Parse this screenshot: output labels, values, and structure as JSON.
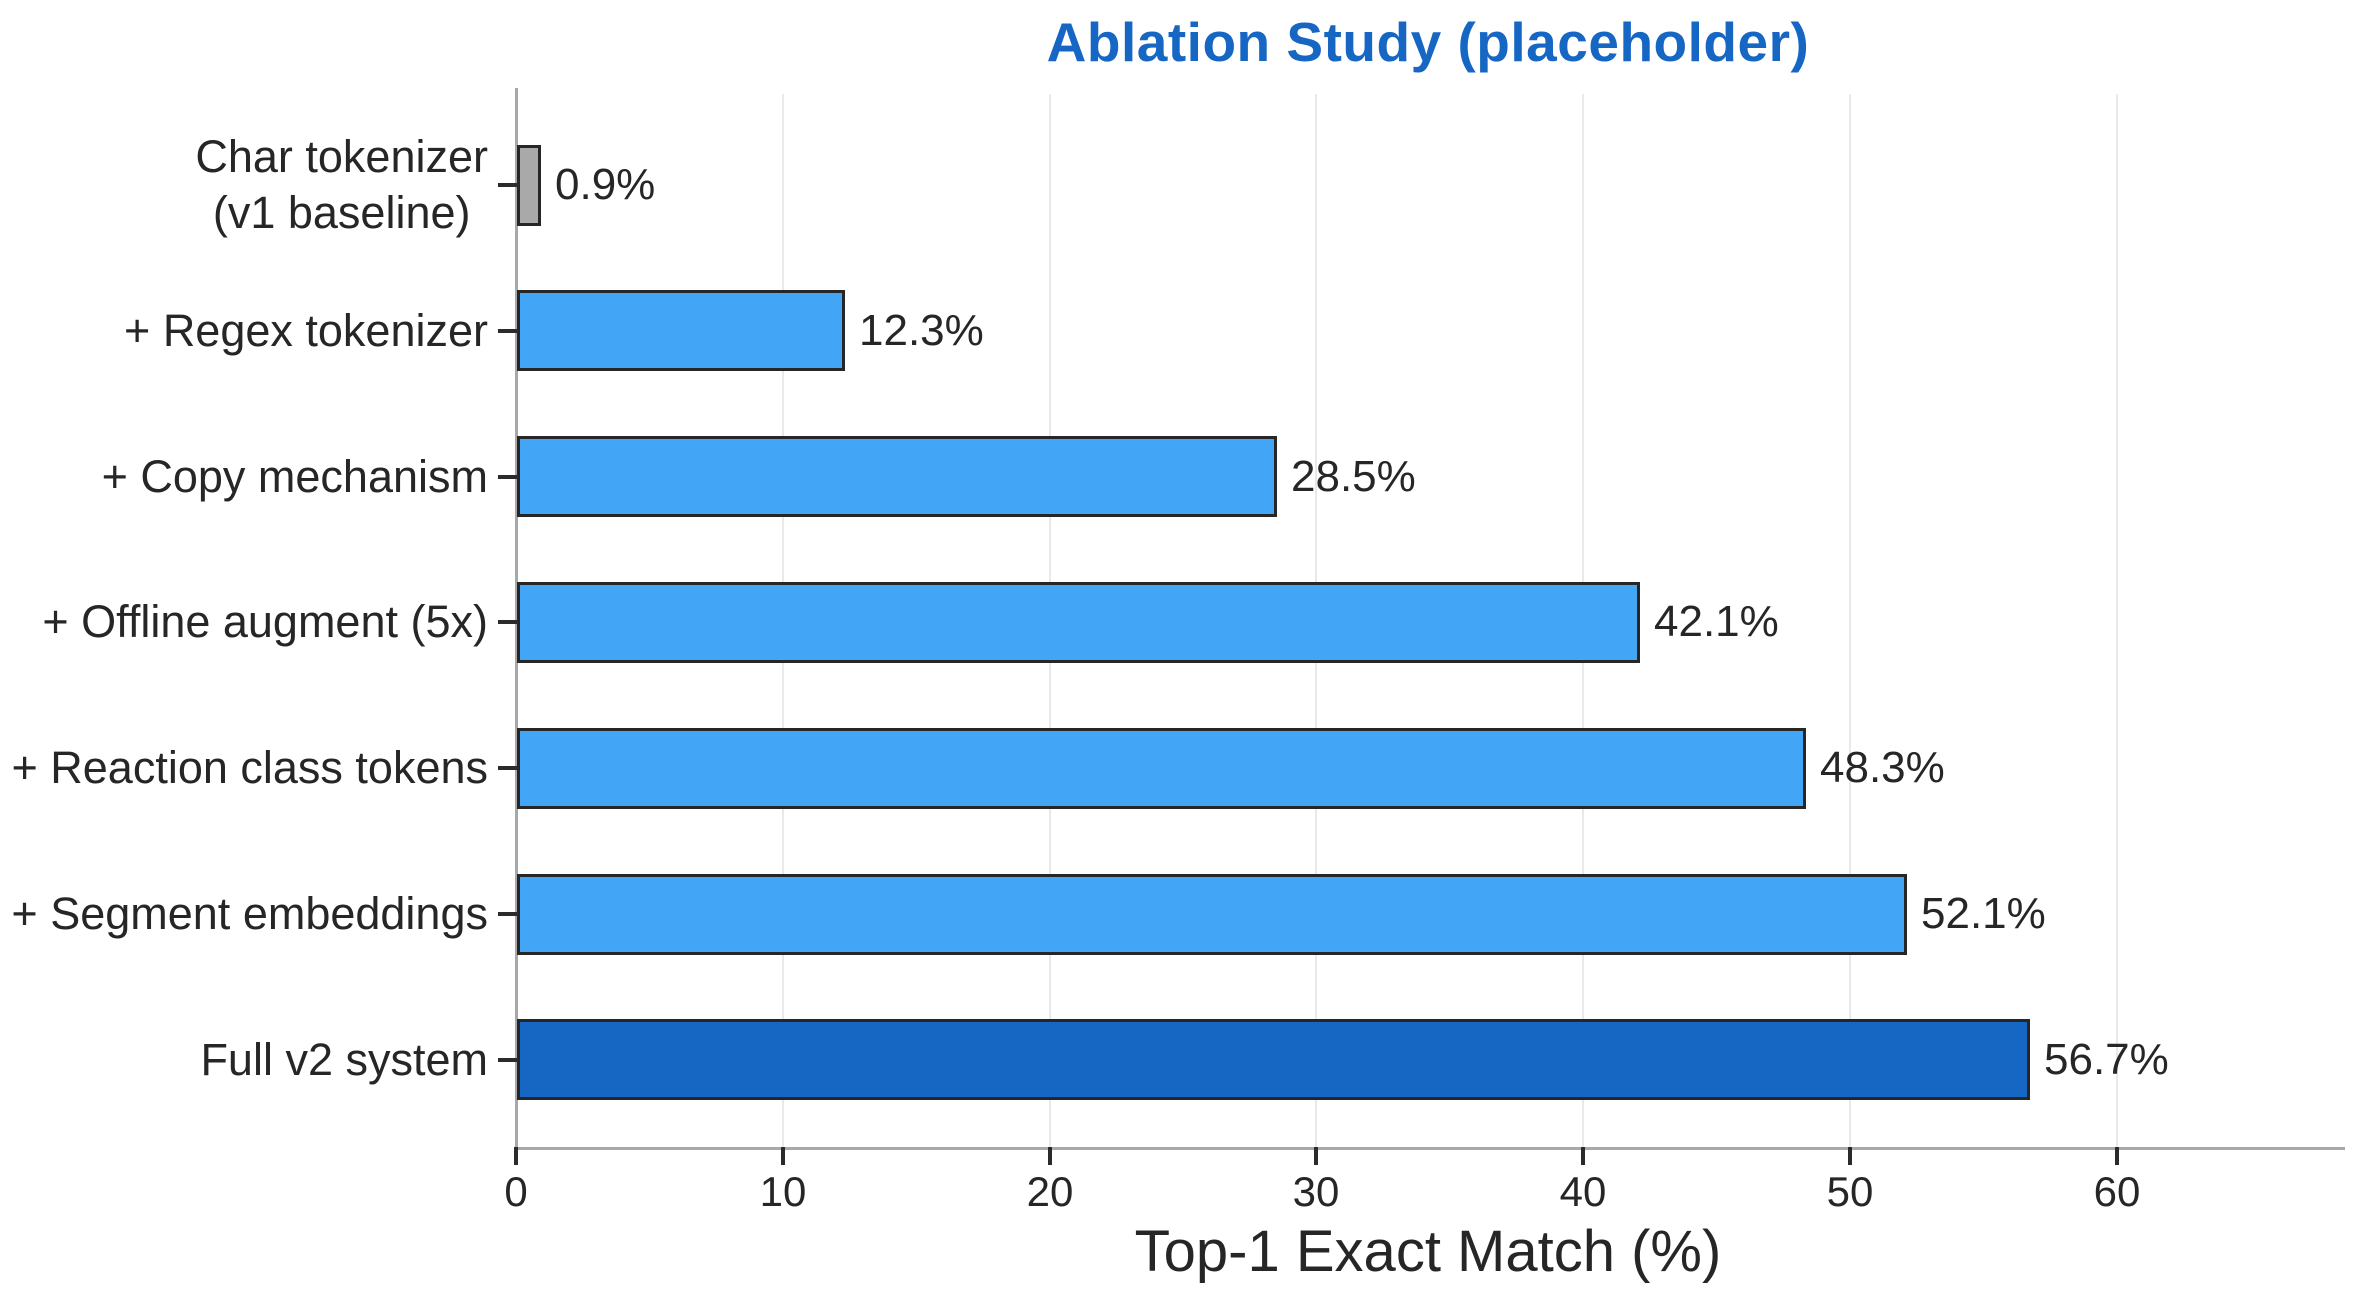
{
  "chart_data": {
    "type": "bar",
    "orientation": "horizontal",
    "title": "Ablation Study (placeholder)",
    "xlabel": "Top-1 Exact Match (%)",
    "categories": [
      "Char tokenizer\n(v1 baseline)",
      "+ Regex tokenizer",
      "+ Copy mechanism",
      "+ Offline augment (5x)",
      "+ Reaction class tokens",
      "+ Segment embeddings",
      "Full v2 system"
    ],
    "values": [
      0.9,
      12.3,
      28.5,
      42.1,
      48.3,
      52.1,
      56.7
    ],
    "value_labels": [
      "0.9%",
      "12.3%",
      "28.5%",
      "42.1%",
      "48.3%",
      "52.1%",
      "56.7%"
    ],
    "bar_colors": [
      "#a9a9a9",
      "#42a5f5",
      "#42a5f5",
      "#42a5f5",
      "#42a5f5",
      "#42a5f5",
      "#1666c4"
    ],
    "bar_edge_color": "#262626",
    "xticks": [
      0,
      10,
      20,
      30,
      40,
      50,
      60
    ],
    "xtick_labels": [
      "0",
      "10",
      "20",
      "30",
      "40",
      "50",
      "60"
    ],
    "xlim": [
      0,
      68.4
    ],
    "grid": "vertical-light",
    "legend": null,
    "colors": {
      "title": "#1666c4",
      "text": "#262626",
      "spine": "#a8a8a8",
      "gridline": "#e9e9e9",
      "tick_mark": "#2b2b2b",
      "background": "#ffffff"
    }
  }
}
